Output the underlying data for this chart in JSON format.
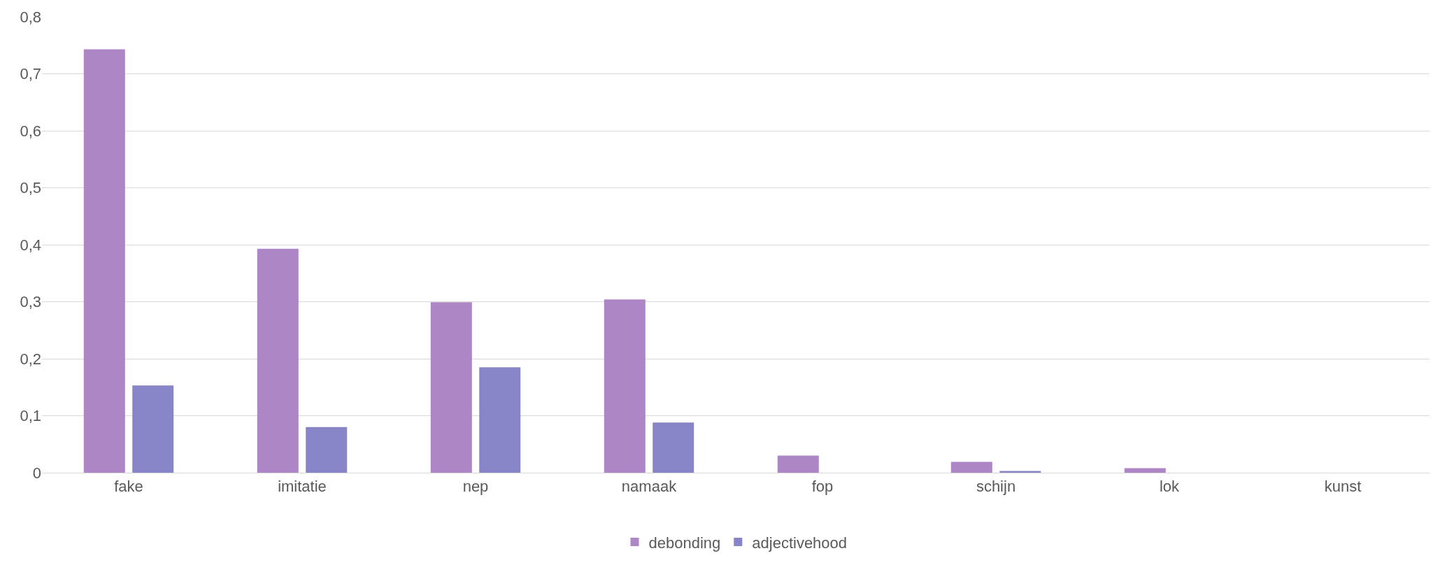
{
  "chart_data": {
    "type": "bar",
    "categories": [
      "fake",
      "imitatie",
      "nep",
      "namaak",
      "fop",
      "schijn",
      "lok",
      "kunst"
    ],
    "series": [
      {
        "name": "debonding",
        "color": "#ad86c6",
        "values": [
          0.743,
          0.393,
          0.299,
          0.304,
          0.03,
          0.019,
          0.008,
          0
        ]
      },
      {
        "name": "adjectivehood",
        "color": "#8785c7",
        "values": [
          0.153,
          0.08,
          0.185,
          0.088,
          0,
          0.003,
          0,
          0
        ]
      }
    ],
    "ylim": [
      0,
      0.8
    ],
    "yticks": [
      {
        "value": 0,
        "label": "0"
      },
      {
        "value": 0.1,
        "label": "0,1"
      },
      {
        "value": 0.2,
        "label": "0,2"
      },
      {
        "value": 0.3,
        "label": "0,3"
      },
      {
        "value": 0.4,
        "label": "0,4"
      },
      {
        "value": 0.5,
        "label": "0,5"
      },
      {
        "value": 0.6,
        "label": "0,6"
      },
      {
        "value": 0.7,
        "label": "0,7"
      },
      {
        "value": 0.8,
        "label": "0,8"
      }
    ],
    "grid": "y",
    "legend": "bottom"
  }
}
